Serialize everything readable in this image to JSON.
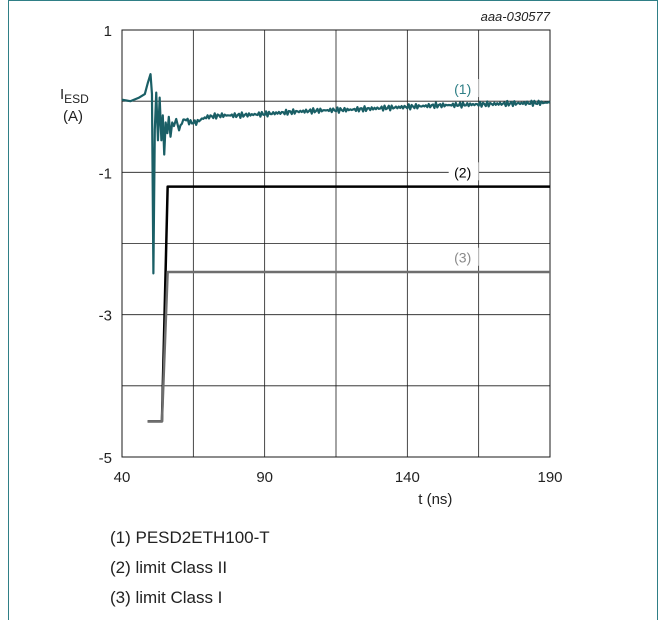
{
  "chart_data": {
    "type": "line",
    "figure_id": "aaa-030577",
    "ylabel_main": "I",
    "ylabel_sub": "ESD",
    "ylabel_unit": "(A)",
    "xlabel": "t (ns)",
    "xlim": [
      40,
      190
    ],
    "ylim": [
      -5,
      1
    ],
    "x_ticks": [
      40,
      90,
      140,
      190
    ],
    "y_ticks": [
      1,
      -1,
      -3,
      -5
    ],
    "x_grid_step": 25,
    "y_grid_step": 1,
    "grid": true,
    "colors": {
      "series1": "#1a5f66",
      "series2": "#000000",
      "series3": "#6e6e6e",
      "label1": "#2f7f86",
      "label3": "#8a8a8a"
    },
    "series": [
      {
        "name": "PESD2ETH100-T",
        "label": "(1)",
        "label_at": [
          158,
          0.17
        ],
        "x": [
          40,
          43,
          46,
          48,
          49,
          50,
          50.5,
          51,
          51.5,
          52,
          52.6,
          53.2,
          53.8,
          54.3,
          54.8,
          55.3,
          55.9,
          56.4,
          57,
          57.6,
          58.2,
          59,
          60,
          61,
          62,
          64,
          66,
          68,
          70,
          75,
          80,
          90,
          100,
          110,
          120,
          130,
          140,
          150,
          160,
          170,
          180,
          190
        ],
        "y": [
          0.02,
          0.0,
          0.05,
          0.1,
          0.25,
          0.38,
          0.1,
          -2.42,
          -0.4,
          0.12,
          -0.55,
          0.05,
          -0.55,
          -0.2,
          -0.75,
          -0.3,
          -0.45,
          -0.22,
          -0.5,
          -0.3,
          -0.35,
          -0.25,
          -0.4,
          -0.3,
          -0.25,
          -0.3,
          -0.3,
          -0.25,
          -0.22,
          -0.2,
          -0.2,
          -0.18,
          -0.15,
          -0.13,
          -0.12,
          -0.1,
          -0.08,
          -0.06,
          -0.05,
          -0.04,
          -0.03,
          -0.02
        ]
      },
      {
        "name": "limit Class II",
        "label": "(2)",
        "label_at": [
          158,
          -1.0
        ],
        "x": [
          49,
          54,
          56,
          190
        ],
        "y": [
          -4.5,
          -4.5,
          -1.2,
          -1.2
        ]
      },
      {
        "name": "limit Class I",
        "label": "(3)",
        "label_at": [
          158,
          -2.2
        ],
        "x": [
          49,
          54,
          56,
          190
        ],
        "y": [
          -4.5,
          -4.5,
          -2.4,
          -2.4
        ]
      }
    ]
  },
  "legend": [
    "(1) PESD2ETH100-T",
    "(2) limit Class II",
    "(3) limit Class I"
  ]
}
